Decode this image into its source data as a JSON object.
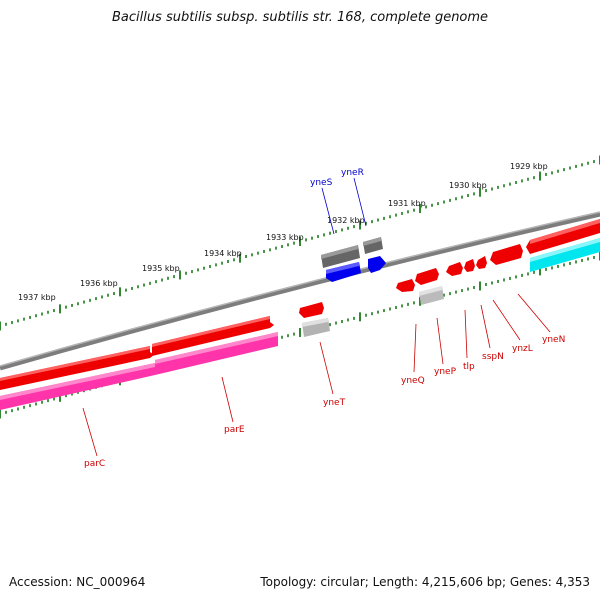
{
  "title": "Bacillus subtilis subsp. subtilis str. 168, complete genome",
  "footer": {
    "accession": "Accession: NC_000964",
    "summary": "Topology: circular; Length: 4,215,606 bp; Genes: 4,353"
  },
  "colors": {
    "background": "#ffffff",
    "backbone": "#8a8a8a",
    "tick_major": "#1a7a1a",
    "label_red": "#cc0000",
    "label_blue": "#0000cc",
    "gene_red": "#ee0000",
    "gene_pink": "#ff33aa",
    "gene_cyan": "#00e6ee",
    "gene_blue": "#0000ee",
    "gene_grey_dark": "#666666",
    "gene_grey_light": "#bbbbbb"
  },
  "scale_labels": [
    "1937 kbp",
    "1936 kbp",
    "1935 kbp",
    "1934 kbp",
    "1933 kbp",
    "1932 kbp",
    "1931 kbp",
    "1930 kbp",
    "1929 kbp"
  ],
  "genes": [
    {
      "name": "parC",
      "color": "label_red"
    },
    {
      "name": "parE",
      "color": "label_red"
    },
    {
      "name": "yneT",
      "color": "label_red"
    },
    {
      "name": "yneQ",
      "color": "label_red"
    },
    {
      "name": "yneP",
      "color": "label_red"
    },
    {
      "name": "tlp",
      "color": "label_red"
    },
    {
      "name": "sspN",
      "color": "label_red"
    },
    {
      "name": "ynzL",
      "color": "label_red"
    },
    {
      "name": "yneN",
      "color": "label_red"
    },
    {
      "name": "yneS",
      "color": "label_blue"
    },
    {
      "name": "yneR",
      "color": "label_blue"
    }
  ]
}
